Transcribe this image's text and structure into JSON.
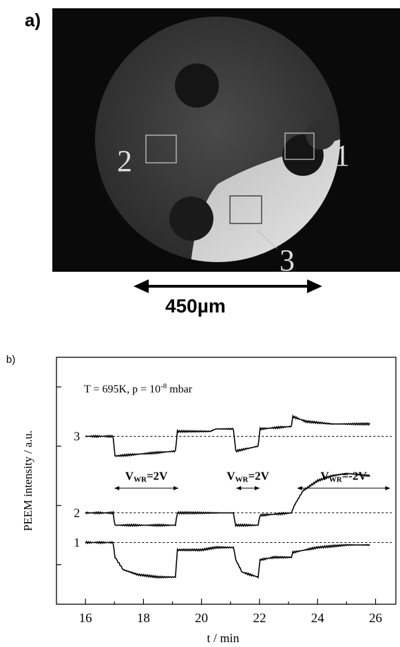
{
  "panel_a": {
    "label": "a)",
    "region_labels": [
      "1",
      "2",
      "3"
    ],
    "scale_bar_label": "450µm"
  },
  "panel_b": {
    "label": "b)",
    "conditions_prefix": "T = 695K, p = 10",
    "conditions_exp": "-8",
    "conditions_suffix": " mbar",
    "annotations": [
      {
        "text": "V",
        "sub": "WR",
        "rest": "=2V"
      },
      {
        "text": "V",
        "sub": "WR",
        "rest": "=2V"
      },
      {
        "text": "V",
        "sub": "WR",
        "rest": "=-2V"
      }
    ]
  },
  "chart_data": {
    "type": "line",
    "title": "",
    "xlabel": "t / min",
    "ylabel": "PEEM intensity / a.u.",
    "xlim": [
      15,
      26.7
    ],
    "ylim": [
      0,
      100
    ],
    "x_ticks": [
      16,
      18,
      20,
      22,
      24,
      26
    ],
    "y_tick_labels": "none",
    "grid": false,
    "series": [
      {
        "name": "3",
        "baseline": 68,
        "points": [
          [
            16,
            68
          ],
          [
            16.95,
            68
          ],
          [
            17.02,
            60
          ],
          [
            19.1,
            62
          ],
          [
            19.17,
            70
          ],
          [
            20.3,
            70
          ],
          [
            20.5,
            71
          ],
          [
            21.1,
            71
          ],
          [
            21.18,
            62
          ],
          [
            21.95,
            64
          ],
          [
            22.02,
            71
          ],
          [
            23.1,
            72
          ],
          [
            23.15,
            76
          ],
          [
            23.6,
            74
          ],
          [
            24.5,
            73
          ],
          [
            25.8,
            73
          ]
        ]
      },
      {
        "name": "2",
        "baseline": 37,
        "points": [
          [
            16,
            37
          ],
          [
            16.95,
            37
          ],
          [
            17.02,
            32
          ],
          [
            19.1,
            32
          ],
          [
            19.17,
            37
          ],
          [
            21.1,
            37
          ],
          [
            21.18,
            32
          ],
          [
            21.95,
            32
          ],
          [
            22.02,
            36
          ],
          [
            23.1,
            37
          ],
          [
            23.2,
            40
          ],
          [
            23.5,
            46
          ],
          [
            24,
            50
          ],
          [
            24.5,
            52
          ],
          [
            25,
            53
          ],
          [
            25.8,
            52
          ]
        ]
      },
      {
        "name": "1",
        "baseline": 25,
        "points": [
          [
            16,
            25
          ],
          [
            16.95,
            25
          ],
          [
            17.02,
            19
          ],
          [
            17.3,
            14
          ],
          [
            17.8,
            12
          ],
          [
            18.5,
            11
          ],
          [
            19.1,
            11
          ],
          [
            19.17,
            22
          ],
          [
            20,
            22
          ],
          [
            20.5,
            23
          ],
          [
            21.1,
            23
          ],
          [
            21.18,
            18
          ],
          [
            21.4,
            13
          ],
          [
            21.95,
            11
          ],
          [
            22.02,
            18
          ],
          [
            22.5,
            19
          ],
          [
            23.1,
            19
          ],
          [
            23.15,
            21
          ],
          [
            24,
            23
          ],
          [
            25,
            24
          ],
          [
            25.8,
            24
          ]
        ]
      }
    ],
    "intervals": [
      {
        "label_index": 0,
        "from": 17.0,
        "to": 19.2
      },
      {
        "label_index": 1,
        "from": 21.2,
        "to": 22.0
      },
      {
        "label_index": 2,
        "from": 23.3,
        "to": 26.5
      }
    ]
  }
}
